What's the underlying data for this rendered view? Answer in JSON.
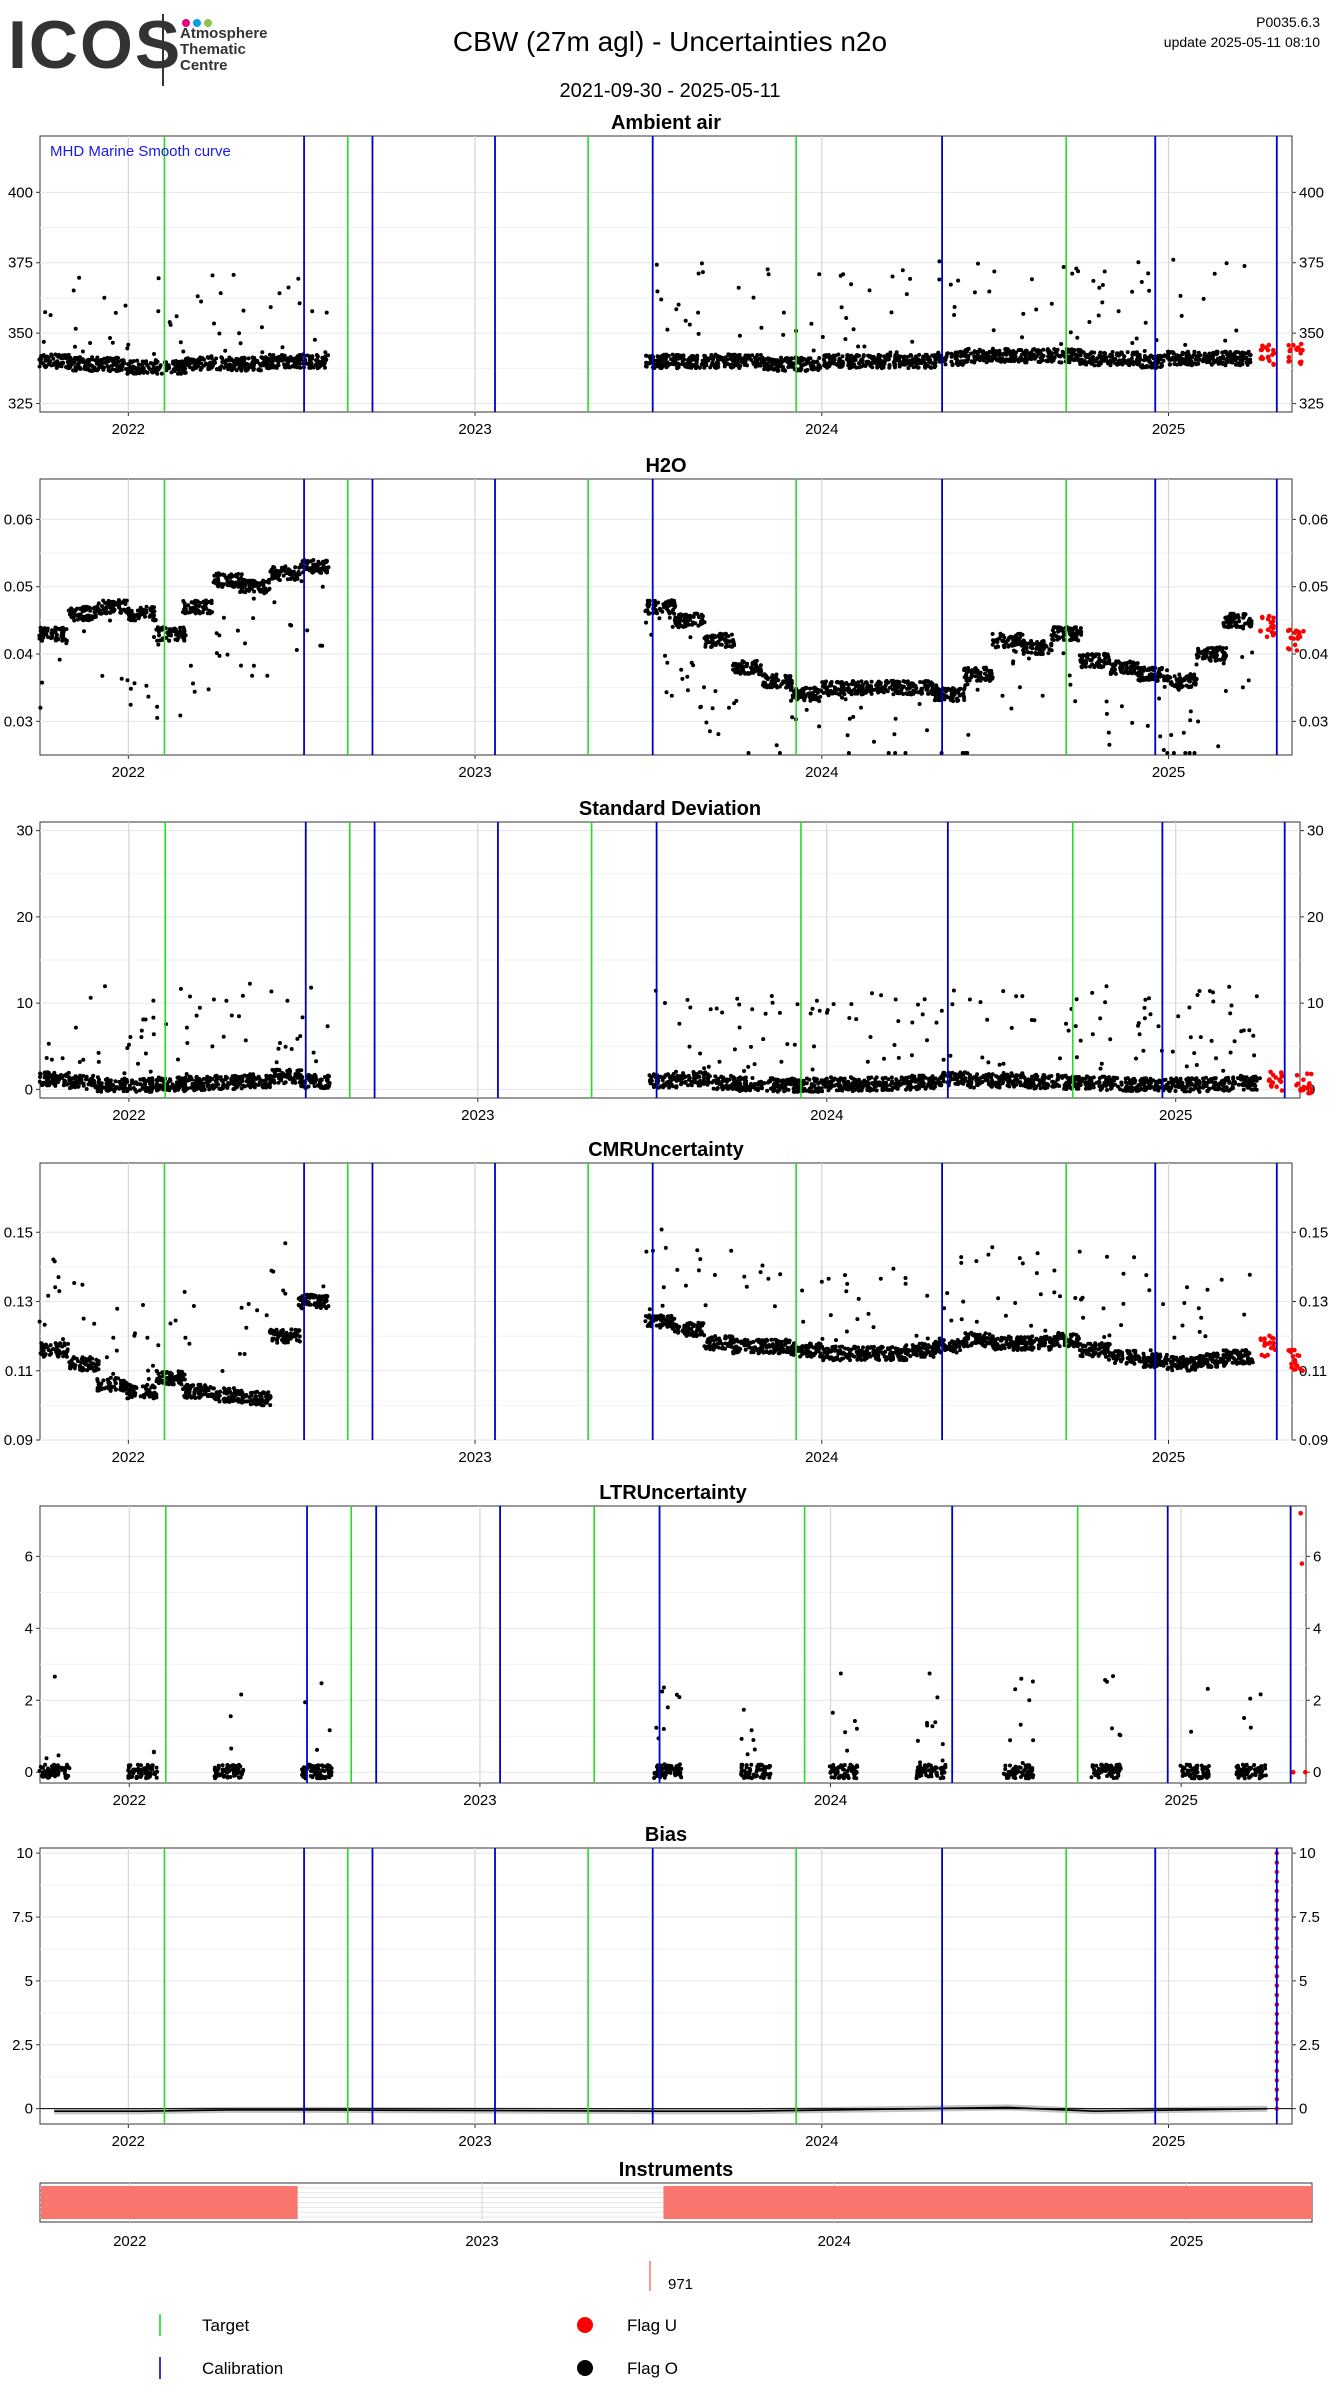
{
  "header": {
    "logo": "ICOS",
    "logo_subtitle": [
      "Atmosphere",
      "Thematic",
      "Centre"
    ],
    "title": "CBW  (27m agl) - Uncertainties n2o",
    "period": "2021-09-30 - 2025-05-11",
    "version": "P0035.6.3",
    "update": "update  2025-05-11 08:10"
  },
  "colors": {
    "target": "#22dd22",
    "calibration": "#0000cc",
    "flag_u": "#ff0000",
    "flag_o": "#000000",
    "instrument": "#f8766d",
    "logo_dots": [
      "#e6007e",
      "#00a0e3",
      "#8bc34a"
    ]
  },
  "chart_data": [
    {
      "type": "scatter",
      "title": "Ambient air",
      "annotation": "MHD Marine Smooth curve",
      "x_range": [
        "2021-09-30",
        "2025-05-11"
      ],
      "x_ticks": [
        "2022",
        "2023",
        "2024",
        "2025"
      ],
      "ylim": [
        322,
        420
      ],
      "yticks": [
        325,
        350,
        375,
        400
      ],
      "series": [
        {
          "x": [
            "2021-10",
            "2021-11",
            "2021-12",
            "2022-01",
            "2022-02",
            "2022-03",
            "2022-04",
            "2022-05",
            "2022-06",
            "2022-07",
            "2023-07",
            "2023-08",
            "2023-09",
            "2023-10",
            "2023-11",
            "2023-12",
            "2024-01",
            "2024-02",
            "2024-03",
            "2024-04",
            "2024-05",
            "2024-06",
            "2024-07",
            "2024-08",
            "2024-09",
            "2024-10",
            "2024-11",
            "2024-12",
            "2025-01",
            "2025-02",
            "2025-03"
          ],
          "y": [
            340,
            339,
            339,
            338,
            338,
            339,
            339,
            339,
            340,
            340,
            340,
            340,
            340,
            340,
            339,
            339,
            340,
            340,
            340,
            340,
            341,
            342,
            342,
            342,
            342,
            341,
            341,
            340,
            341,
            341,
            341
          ]
        },
        {
          "x": [
            "2025-04",
            "2025-05"
          ],
          "y": [
            342,
            343
          ]
        }
      ],
      "targets": [
        "2022-02-08",
        "2022-08-20",
        "2023-04-30",
        "2023-12-05",
        "2024-09-15"
      ],
      "calibrations": [
        "2022-07-05",
        "2022-09-15",
        "2023-01-22",
        "2023-07-07",
        "2024-05-07",
        "2024-12-18",
        "2025-04-25"
      ]
    },
    {
      "type": "scatter",
      "title": "H2O",
      "x_range": [
        "2021-09-30",
        "2025-05-11"
      ],
      "x_ticks": [
        "2022",
        "2023",
        "2024",
        "2025"
      ],
      "ylim": [
        0.025,
        0.066
      ],
      "yticks": [
        0.03,
        0.04,
        0.05,
        0.06
      ],
      "series": [
        {
          "x": [
            "2021-10",
            "2021-11",
            "2021-12",
            "2022-01",
            "2022-02",
            "2022-03",
            "2022-04",
            "2022-05",
            "2022-06",
            "2022-07",
            "2023-07",
            "2023-08",
            "2023-09",
            "2023-10",
            "2023-11",
            "2023-12",
            "2024-01",
            "2024-02",
            "2024-03",
            "2024-04",
            "2024-05",
            "2024-06",
            "2024-07",
            "2024-08",
            "2024-09",
            "2024-10",
            "2024-11",
            "2024-12",
            "2025-01",
            "2025-02",
            "2025-03"
          ],
          "y": [
            0.043,
            0.046,
            0.047,
            0.046,
            0.043,
            0.047,
            0.051,
            0.05,
            0.052,
            0.053,
            0.047,
            0.045,
            0.042,
            0.038,
            0.036,
            0.034,
            0.035,
            0.035,
            0.035,
            0.035,
            0.034,
            0.037,
            0.042,
            0.041,
            0.043,
            0.039,
            0.038,
            0.037,
            0.036,
            0.04,
            0.045
          ]
        },
        {
          "x": [
            "2025-04",
            "2025-05"
          ],
          "y": [
            0.044,
            0.042
          ]
        }
      ],
      "targets": [
        "2022-02-08",
        "2022-08-20",
        "2023-04-30",
        "2023-12-05",
        "2024-09-15"
      ],
      "calibrations": [
        "2022-07-05",
        "2022-09-15",
        "2023-01-22",
        "2023-07-07",
        "2024-05-07",
        "2024-12-18",
        "2025-04-25"
      ]
    },
    {
      "type": "scatter",
      "title": "Standard Deviation",
      "x_range": [
        "2021-09-30",
        "2025-05-11"
      ],
      "x_ticks": [
        "2022",
        "2023",
        "2024",
        "2025"
      ],
      "ylim": [
        -1,
        31
      ],
      "yticks": [
        0,
        10,
        20,
        30
      ],
      "series": [
        {
          "x": [
            "2021-10",
            "2021-11",
            "2021-12",
            "2022-01",
            "2022-02",
            "2022-03",
            "2022-04",
            "2022-05",
            "2022-06",
            "2022-07",
            "2023-07",
            "2023-08",
            "2023-09",
            "2023-10",
            "2023-11",
            "2023-12",
            "2024-01",
            "2024-02",
            "2024-03",
            "2024-04",
            "2024-05",
            "2024-06",
            "2024-07",
            "2024-08",
            "2024-09",
            "2024-10",
            "2024-11",
            "2024-12",
            "2025-01",
            "2025-02",
            "2025-03"
          ],
          "y": [
            1.2,
            0.8,
            0.5,
            0.5,
            0.6,
            0.7,
            0.8,
            1.0,
            1.5,
            0.9,
            1.0,
            1.2,
            0.8,
            0.6,
            0.5,
            0.5,
            0.6,
            0.6,
            0.7,
            0.8,
            1.2,
            1.0,
            1.1,
            0.9,
            0.8,
            0.7,
            0.6,
            0.6,
            0.5,
            0.6,
            0.7
          ]
        },
        {
          "x": [
            "2025-04",
            "2025-05"
          ],
          "y": [
            1.0,
            0.6
          ]
        }
      ],
      "targets": [
        "2022-02-08",
        "2022-08-20",
        "2023-04-30",
        "2023-12-05",
        "2024-09-15"
      ],
      "calibrations": [
        "2022-07-05",
        "2022-09-15",
        "2023-01-22",
        "2023-07-07",
        "2024-05-07",
        "2024-12-18",
        "2025-04-25"
      ]
    },
    {
      "type": "scatter",
      "title": "CMRUncertainty",
      "x_range": [
        "2021-09-30",
        "2025-05-11"
      ],
      "x_ticks": [
        "2022",
        "2023",
        "2024",
        "2025"
      ],
      "ylim": [
        0.09,
        0.17
      ],
      "yticks": [
        0.09,
        0.11,
        0.13,
        0.15
      ],
      "series": [
        {
          "x": [
            "2021-10",
            "2021-11",
            "2021-12",
            "2022-01",
            "2022-02",
            "2022-03",
            "2022-04",
            "2022-05",
            "2022-06",
            "2022-07",
            "2023-07",
            "2023-08",
            "2023-09",
            "2023-10",
            "2023-11",
            "2023-12",
            "2024-01",
            "2024-02",
            "2024-03",
            "2024-04",
            "2024-05",
            "2024-06",
            "2024-07",
            "2024-08",
            "2024-09",
            "2024-10",
            "2024-11",
            "2024-12",
            "2025-01",
            "2025-02",
            "2025-03"
          ],
          "y": [
            0.116,
            0.112,
            0.106,
            0.104,
            0.108,
            0.104,
            0.103,
            0.102,
            0.12,
            0.13,
            0.124,
            0.122,
            0.118,
            0.117,
            0.117,
            0.116,
            0.115,
            0.115,
            0.115,
            0.116,
            0.117,
            0.119,
            0.118,
            0.118,
            0.119,
            0.116,
            0.114,
            0.113,
            0.112,
            0.113,
            0.114
          ]
        },
        {
          "x": [
            "2025-04",
            "2025-05"
          ],
          "y": [
            0.117,
            0.113
          ]
        }
      ],
      "targets": [
        "2022-02-08",
        "2022-08-20",
        "2023-04-30",
        "2023-12-05",
        "2024-09-15"
      ],
      "calibrations": [
        "2022-07-05",
        "2022-09-15",
        "2023-01-22",
        "2023-07-07",
        "2024-05-07",
        "2024-12-18",
        "2025-04-25"
      ]
    },
    {
      "type": "scatter",
      "title": "LTRUncertainty",
      "x_range": [
        "2021-09-30",
        "2025-05-11"
      ],
      "x_ticks": [
        "2022",
        "2023",
        "2024",
        "2025"
      ],
      "ylim": [
        -0.3,
        7.4
      ],
      "yticks": [
        0,
        2,
        4,
        6
      ],
      "series": [
        {
          "x": [
            "2021-10",
            "2022-01",
            "2022-04",
            "2022-07",
            "2023-07",
            "2023-10",
            "2024-01",
            "2024-04",
            "2024-07",
            "2024-10",
            "2025-01",
            "2025-03"
          ],
          "y": [
            0.02,
            0.02,
            0.02,
            0.02,
            0.03,
            0.02,
            0.02,
            0.02,
            0.02,
            0.02,
            0.02,
            0.02
          ]
        },
        {
          "x": [
            "2025-04-28",
            "2025-05-04",
            "2025-05-06",
            "2025-05-08"
          ],
          "y": [
            0.0,
            0.0,
            5.8,
            7.2
          ]
        }
      ],
      "targets": [
        "2022-02-08",
        "2022-08-20",
        "2023-04-30",
        "2023-12-05",
        "2024-09-15"
      ],
      "calibrations": [
        "2022-07-05",
        "2022-09-15",
        "2023-01-22",
        "2023-07-07",
        "2024-05-07",
        "2024-12-18",
        "2025-04-25"
      ]
    },
    {
      "type": "line",
      "title": "Bias",
      "x_range": [
        "2021-09-30",
        "2025-05-11"
      ],
      "x_ticks": [
        "2022",
        "2023",
        "2024",
        "2025"
      ],
      "ylim": [
        -0.6,
        10.2
      ],
      "yticks": [
        0.0,
        2.5,
        5.0,
        7.5,
        10.0
      ],
      "series": [
        {
          "x": [
            "2021-10",
            "2022-01",
            "2022-04",
            "2022-07",
            "2023-07",
            "2023-10",
            "2024-01",
            "2024-04",
            "2024-07",
            "2024-10",
            "2025-01",
            "2025-04"
          ],
          "y": [
            -0.1,
            -0.1,
            -0.05,
            -0.05,
            -0.1,
            -0.1,
            -0.05,
            0.0,
            0.05,
            -0.1,
            -0.05,
            0.0
          ]
        },
        {
          "x": [
            "2025-04-25"
          ],
          "y": [
            10.0
          ]
        }
      ],
      "targets": [
        "2022-02-08",
        "2022-08-20",
        "2023-04-30",
        "2023-12-05",
        "2024-09-15"
      ],
      "calibrations": [
        "2022-07-05",
        "2022-09-15",
        "2023-01-22",
        "2023-07-07",
        "2024-05-07",
        "2024-12-18",
        "2025-04-25"
      ]
    },
    {
      "type": "bar",
      "title": "Instruments",
      "x_range": [
        "2021-09-30",
        "2025-05-11"
      ],
      "x_ticks": [
        "2022",
        "2023",
        "2024",
        "2025"
      ],
      "periods": [
        {
          "start": "2021-10-01",
          "end": "2022-06-24"
        },
        {
          "start": "2023-07-08",
          "end": "2025-05-11"
        }
      ]
    }
  ],
  "instrument_id": "971",
  "legend": [
    {
      "label": "Target",
      "kind": "target-line"
    },
    {
      "label": "Flag U",
      "kind": "flag-u-dot"
    },
    {
      "label": "Calibration",
      "kind": "calibration-line"
    },
    {
      "label": "Flag O",
      "kind": "flag-o-dot"
    }
  ]
}
